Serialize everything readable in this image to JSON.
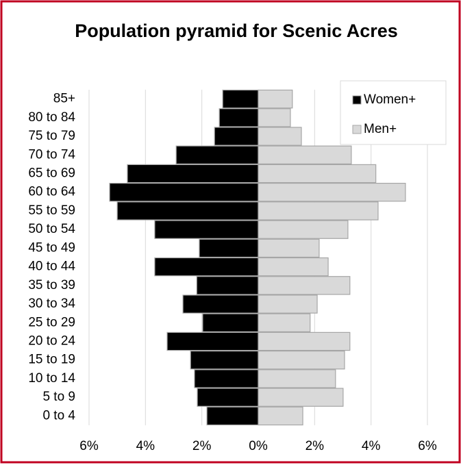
{
  "chart_data": {
    "type": "pyramid",
    "title": "Population pyramid for Scenic Acres",
    "categories": [
      "85+",
      "80 to 84",
      "75 to 79",
      "70 to 74",
      "65 to 69",
      "60 to 64",
      "55 to 59",
      "50 to 54",
      "45 to 49",
      "40 to 44",
      "35 to 39",
      "30 to 34",
      "25 to 29",
      "20 to 24",
      "15 to 19",
      "10 to 14",
      "5 to 9",
      "0 to 4"
    ],
    "series": [
      {
        "name": "Women+",
        "color": "#000000",
        "values": [
          -1.26,
          -1.38,
          -1.55,
          -2.91,
          -4.64,
          -5.27,
          -5.0,
          -3.67,
          -2.09,
          -3.67,
          -2.18,
          -2.67,
          -1.97,
          -3.23,
          -2.4,
          -2.26,
          -2.16,
          -1.82
        ]
      },
      {
        "name": "Men+",
        "color": "#d9d9d9",
        "values": [
          1.21,
          1.14,
          1.53,
          3.3,
          4.17,
          5.22,
          4.25,
          3.18,
          2.16,
          2.48,
          3.25,
          2.09,
          1.84,
          3.25,
          3.06,
          2.74,
          3.01,
          1.58
        ]
      }
    ],
    "xlim": [
      -6,
      6
    ],
    "xticks": [
      {
        "value": -6,
        "label": "6%"
      },
      {
        "value": -4,
        "label": "4%"
      },
      {
        "value": -2,
        "label": "2%"
      },
      {
        "value": 0,
        "label": "0%"
      },
      {
        "value": 2,
        "label": "2%"
      },
      {
        "value": 4,
        "label": "4%"
      },
      {
        "value": 6,
        "label": "6%"
      }
    ],
    "grid": true,
    "legend": "top-right"
  }
}
